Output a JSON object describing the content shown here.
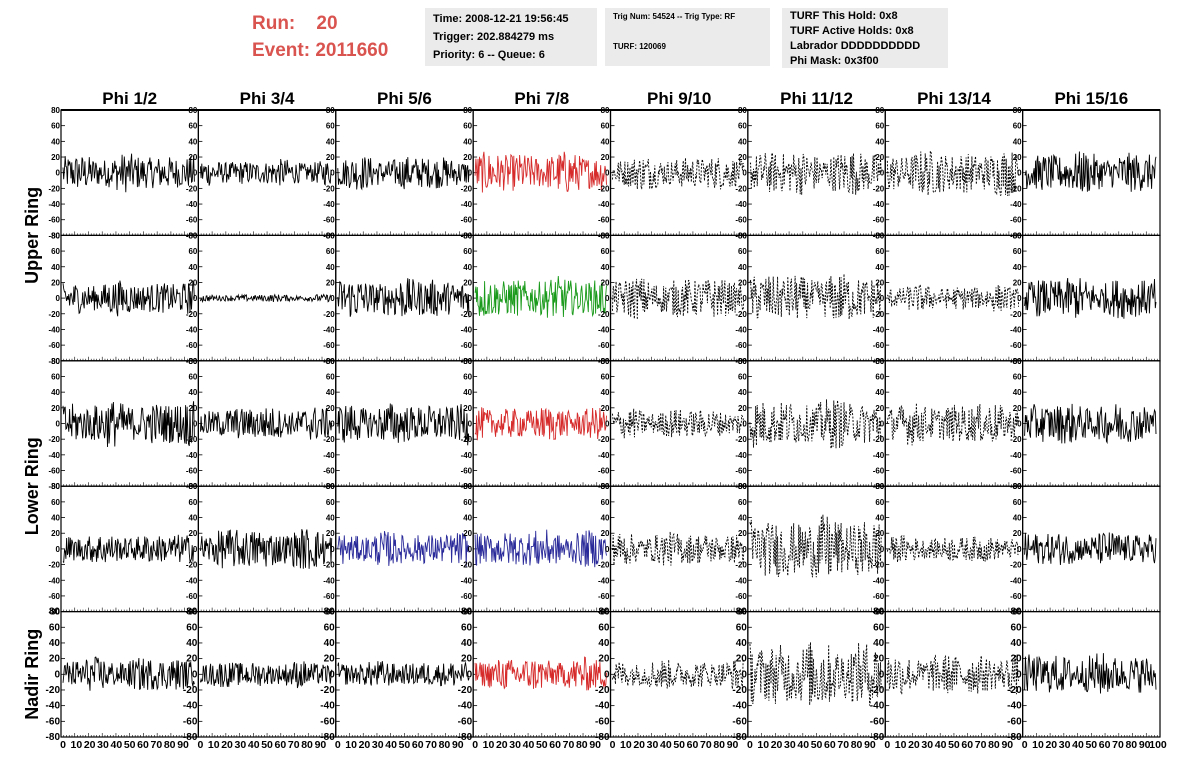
{
  "run_label": "Run:",
  "run_value": "20",
  "event_label": "Event:",
  "event_value": "2011660",
  "time_box": {
    "time": "Time: 2008-12-21 19:56:45",
    "trigger": "Trigger: 202.884279 ms",
    "priority": "Priority: 6 -- Queue: 6"
  },
  "trig_box": {
    "trig": "Trig Num: 54524 -- Trig Type: RF",
    "turf": "TURF: 120069"
  },
  "turf_box": {
    "this_hold": "TURF This Hold: 0x8",
    "active_holds": "TURF Active Holds: 0x8",
    "labrador": "Labrador DDDDDDDDDD",
    "phi_mask": "Phi Mask: 0x3f00"
  },
  "colors": {
    "run_text": "#d9534f",
    "box_bg": "#ebebeb",
    "default_trace": "#000000",
    "red_trace": "#d62a2a",
    "green_trace": "#1a9a1a",
    "blue_trace": "#2a2a9a"
  },
  "chart_data": {
    "type": "line",
    "columns": [
      "Phi 1/2",
      "Phi 3/4",
      "Phi 5/6",
      "Phi 7/8",
      "Phi 9/10",
      "Phi 11/12",
      "Phi 13/14",
      "Phi 15/16"
    ],
    "ring_labels": [
      "Upper Ring",
      "Lower Ring",
      "Nadir Ring"
    ],
    "rows": 5,
    "ylim": [
      -80,
      80
    ],
    "xlim": [
      0,
      100
    ],
    "y_ticks": [
      80,
      60,
      40,
      20,
      0,
      -20,
      -40,
      -60,
      -80
    ],
    "x_ticks": [
      0,
      10,
      20,
      30,
      40,
      50,
      60,
      70,
      80,
      90,
      100
    ],
    "x_tick_labels_row": [
      "0",
      "10",
      "20",
      "30",
      "40",
      "50",
      "60",
      "70",
      "80",
      "90"
    ],
    "panel_styles": [
      [
        "solid",
        "solid",
        "solid",
        "red",
        "dashed",
        "dashed",
        "dashed",
        "solid"
      ],
      [
        "solid",
        "solid",
        "solid",
        "green",
        "dashed",
        "dashed",
        "dashed",
        "solid"
      ],
      [
        "solid",
        "solid",
        "solid",
        "red",
        "dashed",
        "dashed",
        "dashed",
        "solid"
      ],
      [
        "solid",
        "solid",
        "blue",
        "blue",
        "dashed",
        "dashed",
        "dashed",
        "solid"
      ],
      [
        "solid",
        "solid",
        "solid",
        "red",
        "dashed",
        "dashed",
        "dashed",
        "solid"
      ]
    ],
    "panel_amplitudes": [
      [
        20,
        14,
        18,
        22,
        18,
        24,
        24,
        22
      ],
      [
        18,
        4,
        22,
        22,
        22,
        26,
        14,
        22
      ],
      [
        24,
        18,
        22,
        18,
        16,
        26,
        22,
        22
      ],
      [
        16,
        22,
        18,
        20,
        18,
        34,
        14,
        18
      ],
      [
        18,
        14,
        14,
        18,
        16,
        36,
        22,
        22
      ]
    ]
  }
}
